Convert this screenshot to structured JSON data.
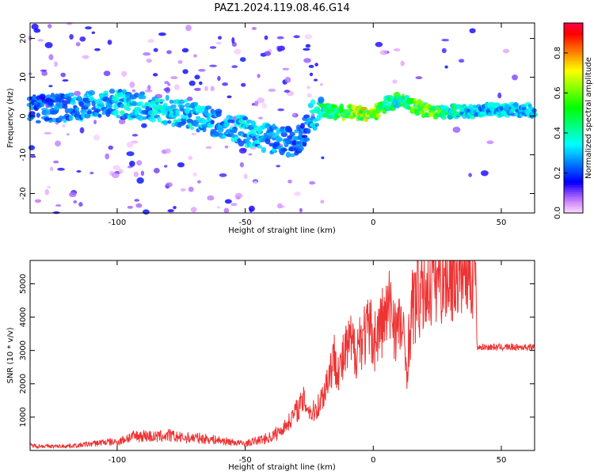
{
  "title": "PAZ1.2024.119.08.46.G14",
  "chart_data": [
    {
      "type": "heatmap",
      "xlabel": "Height of straight line (km)",
      "ylabel": "Frequency (Hz)",
      "xlim": [
        -134,
        63
      ],
      "ylim": [
        -25,
        24
      ],
      "xticks": [
        -100,
        -50,
        0,
        50
      ],
      "yticks": [
        -20,
        -10,
        0,
        10,
        20
      ],
      "colorbar": {
        "label": "Normalized spectral amplitude",
        "range": [
          0,
          0.95
        ],
        "ticks": [
          0.0,
          0.2,
          0.4,
          0.6,
          0.8
        ],
        "tick_labels": [
          "0.0",
          "0.2",
          "0.4",
          "0.6",
          "0.8"
        ]
      },
      "ridge": {
        "x": [
          -130,
          -115,
          -100,
          -90,
          -80,
          -70,
          -60,
          -50,
          -40,
          -30,
          -27,
          -24,
          -20,
          -10,
          0,
          5,
          10,
          15,
          20,
          30,
          40,
          63
        ],
        "y": [
          2,
          2.5,
          3,
          2.5,
          1.5,
          0,
          -2,
          -4,
          -6,
          -7,
          -4,
          0,
          1,
          1,
          0.5,
          3,
          4,
          3,
          1.5,
          1,
          1.5,
          1.5
        ],
        "amplitude": [
          0.25,
          0.3,
          0.35,
          0.35,
          0.35,
          0.35,
          0.3,
          0.35,
          0.3,
          0.3,
          0.25,
          0.35,
          0.45,
          0.7,
          0.7,
          0.5,
          0.5,
          0.6,
          0.7,
          0.45,
          0.35,
          0.35
        ]
      }
    },
    {
      "type": "line",
      "xlabel": "Height of straight line (km)",
      "ylabel": "SNR (10 * v/v)",
      "xlim": [
        -134,
        63
      ],
      "ylim": [
        0,
        5700
      ],
      "xticks": [
        -100,
        -50,
        0,
        50
      ],
      "yticks": [
        1000,
        2000,
        3000,
        4000,
        5000
      ],
      "color": "#ee3333",
      "series": [
        {
          "x": [
            -134,
            -125,
            -115,
            -110,
            -105,
            -100,
            -95,
            -90,
            -85,
            -80,
            -75,
            -70,
            -65,
            -60,
            -55,
            -50,
            -45,
            -40,
            -36,
            -33,
            -30,
            -27,
            -24,
            -21,
            -19,
            -17,
            -15,
            -13,
            -11,
            -9,
            -7,
            -5,
            -3,
            -1,
            1,
            3,
            5,
            7,
            9,
            11,
            13,
            15,
            17,
            19,
            21,
            23,
            25,
            27,
            30,
            33,
            36,
            39,
            40,
            40.5,
            45,
            50,
            55,
            60,
            63
          ],
          "y": [
            150,
            120,
            150,
            200,
            250,
            250,
            400,
            450,
            400,
            450,
            380,
            380,
            350,
            300,
            250,
            200,
            300,
            400,
            600,
            850,
            1200,
            1500,
            1100,
            1400,
            1800,
            2400,
            2800,
            2400,
            2900,
            3200,
            3000,
            3400,
            3500,
            3600,
            3300,
            3800,
            4000,
            4400,
            3600,
            3800,
            2500,
            4200,
            4600,
            4700,
            5000,
            5200,
            5300,
            5350,
            5400,
            5500,
            5500,
            5550,
            5600,
            3100,
            3100,
            3100,
            3100,
            3100,
            3100
          ]
        }
      ]
    }
  ]
}
